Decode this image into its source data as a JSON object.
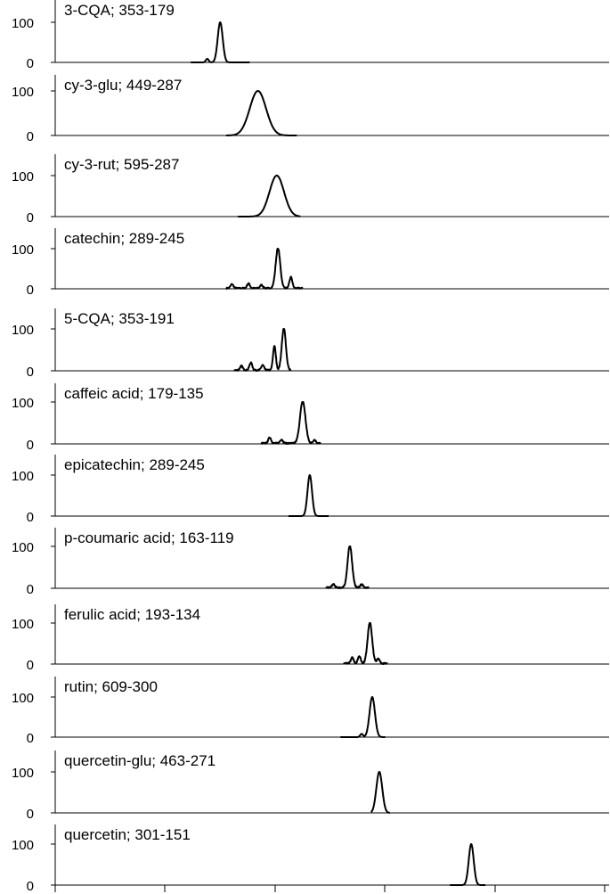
{
  "chart_data": {
    "type": "line",
    "shared_y_ticks": [
      "0",
      "100"
    ],
    "panels": [
      {
        "label": "3-CQA; 353-179",
        "rt": 19.0,
        "width": 0.55,
        "minor": [
          [
            17.9,
            9
          ]
        ],
        "range": [
          16.5,
          21.5
        ]
      },
      {
        "label": "cy-3-glu; 449-287",
        "rt": 22.2,
        "width": 1.8,
        "minor": [],
        "range": [
          19.5,
          25.5
        ]
      },
      {
        "label": "cy-3-rut; 595-287",
        "rt": 23.8,
        "width": 1.6,
        "minor": [],
        "range": [
          20.5,
          25.8
        ]
      },
      {
        "label": "catechin; 289-245",
        "rt": 23.9,
        "width": 0.5,
        "minor": [
          [
            20.0,
            10
          ],
          [
            21.4,
            12
          ],
          [
            25.0,
            28
          ],
          [
            22.5,
            8
          ]
        ],
        "range": [
          19.5,
          26.0
        ]
      },
      {
        "label": "5-CQA; 353-191",
        "rt": 24.4,
        "width": 0.45,
        "minor": [
          [
            21.6,
            18
          ],
          [
            22.6,
            12
          ],
          [
            23.6,
            58
          ],
          [
            20.8,
            10
          ]
        ],
        "range": [
          20.2,
          25.0
        ]
      },
      {
        "label": "caffeic acid; 179-135",
        "rt": 26.0,
        "width": 0.6,
        "minor": [
          [
            23.2,
            14
          ],
          [
            24.2,
            9
          ],
          [
            27.0,
            8
          ]
        ],
        "range": [
          22.5,
          27.5
        ]
      },
      {
        "label": "epicatechin; 289-245",
        "rt": 26.6,
        "width": 0.5,
        "minor": [],
        "range": [
          24.8,
          28.2
        ]
      },
      {
        "label": "p-coumaric acid; 163-119",
        "rt": 30.0,
        "width": 0.5,
        "minor": [
          [
            28.6,
            8
          ],
          [
            31.0,
            8
          ]
        ],
        "range": [
          28.0,
          31.6
        ]
      },
      {
        "label": "ferulic acid; 193-134",
        "rt": 31.7,
        "width": 0.5,
        "minor": [
          [
            30.2,
            14
          ],
          [
            30.8,
            18
          ],
          [
            32.4,
            12
          ]
        ],
        "range": [
          29.5,
          33.2
        ]
      },
      {
        "label": "rutin; 609-300",
        "rt": 31.9,
        "width": 0.6,
        "minor": [
          [
            31.0,
            8
          ]
        ],
        "range": [
          29.2,
          33.0
        ]
      },
      {
        "label": "quercetin-glu; 463-271",
        "rt": 32.5,
        "width": 0.65,
        "minor": [],
        "range": [
          31.8,
          33.4
        ]
      },
      {
        "label": "quercetin; 301-151",
        "rt": 40.3,
        "width": 0.55,
        "minor": [],
        "range": [
          38.5,
          41.5
        ]
      }
    ]
  }
}
